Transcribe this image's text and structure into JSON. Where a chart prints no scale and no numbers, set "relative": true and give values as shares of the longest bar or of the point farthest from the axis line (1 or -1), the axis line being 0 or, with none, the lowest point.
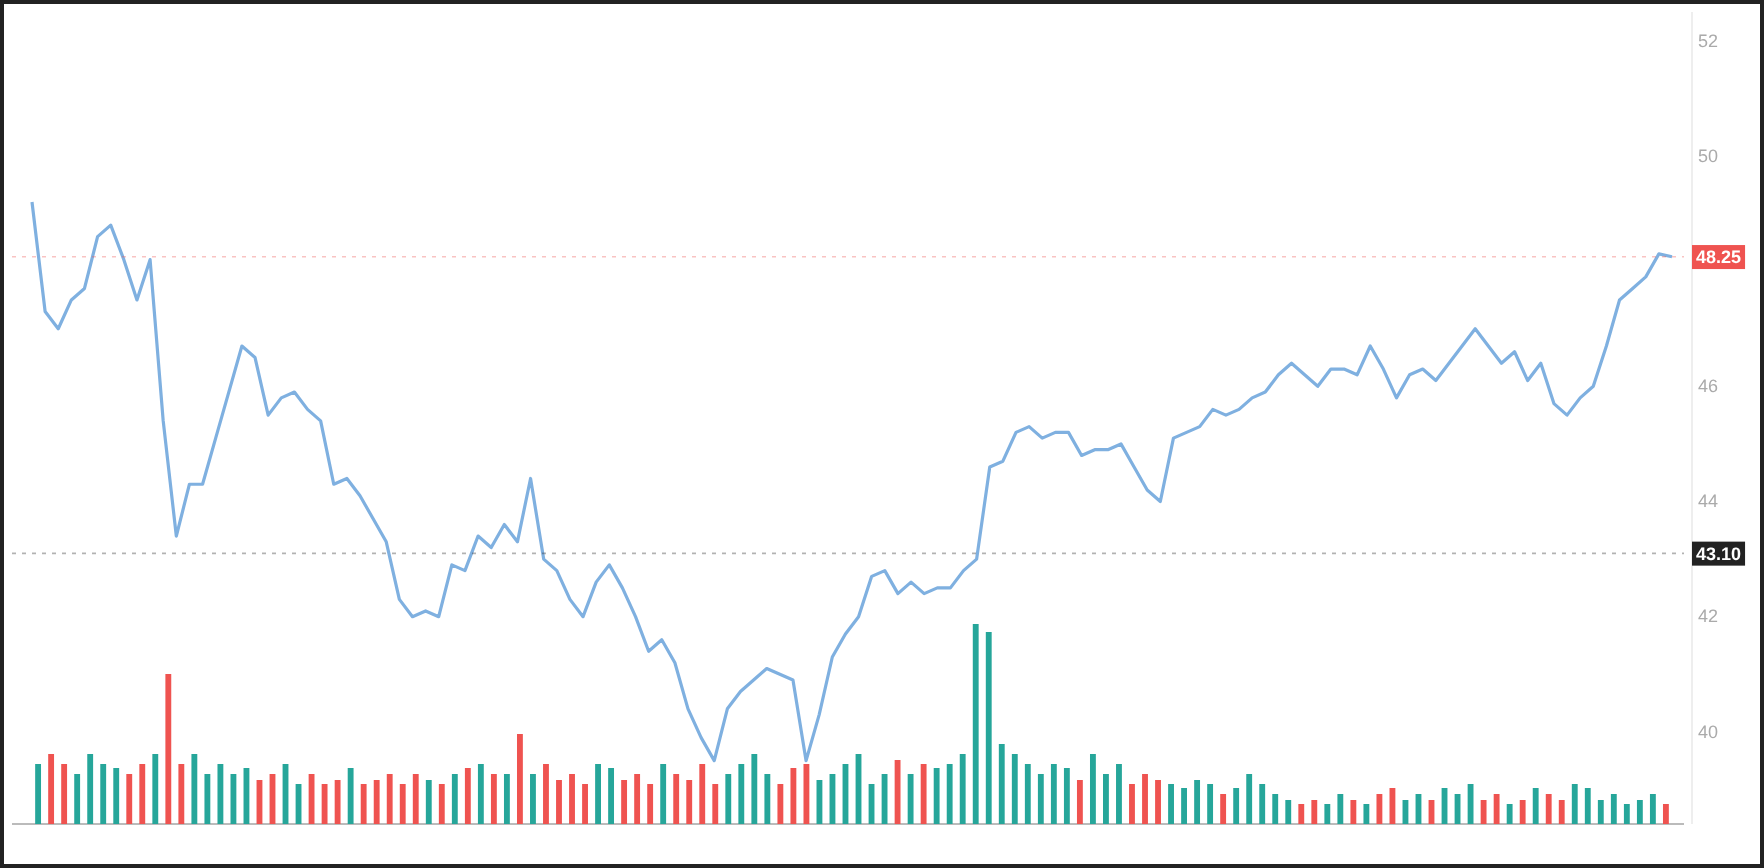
{
  "chart_data": [
    {
      "type": "line",
      "categories": [
        null,
        null,
        null,
        null,
        null,
        null,
        null,
        null,
        null,
        null,
        null,
        null,
        null,
        null,
        null,
        null,
        null,
        null,
        null,
        null,
        null,
        null,
        null,
        null,
        null,
        null,
        null,
        null,
        null,
        null,
        null,
        null,
        null,
        null,
        null,
        null,
        null,
        null,
        null,
        null,
        null,
        null,
        null,
        null,
        null,
        null,
        null,
        null,
        null,
        null,
        null,
        null,
        null,
        null,
        null,
        null,
        null,
        null,
        null,
        null,
        null,
        null,
        null,
        null,
        null,
        null,
        null,
        null,
        null,
        null,
        null,
        null,
        null,
        null,
        null,
        null,
        null,
        null,
        null,
        null,
        null,
        null,
        null,
        null,
        null,
        null,
        null,
        null,
        null,
        null,
        null,
        null,
        null,
        null,
        null,
        null,
        null,
        null,
        null,
        null,
        null,
        null,
        null,
        null,
        null,
        null,
        null,
        null,
        null,
        null,
        null,
        null,
        null,
        null,
        null,
        null,
        null,
        null,
        null,
        null,
        null,
        null,
        null,
        null,
        null,
        null
      ],
      "series": [
        {
          "color": "#7fb0e0",
          "values": [
            49.2,
            47.3,
            47.0,
            47.5,
            47.7,
            48.6,
            48.8,
            48.2,
            47.5,
            48.2,
            45.4,
            43.4,
            44.3,
            44.3,
            45.1,
            45.9,
            46.7,
            46.5,
            45.5,
            45.8,
            45.9,
            45.6,
            45.4,
            44.3,
            44.4,
            44.1,
            43.7,
            43.3,
            42.3,
            42.0,
            42.1,
            42.0,
            42.9,
            42.8,
            43.4,
            43.2,
            43.6,
            43.3,
            44.4,
            43.0,
            42.8,
            42.3,
            42.0,
            42.6,
            42.9,
            42.5,
            42.0,
            41.4,
            41.6,
            41.2,
            40.4,
            39.9,
            39.5,
            40.4,
            40.7,
            40.9,
            41.1,
            41.0,
            40.9,
            39.5,
            40.3,
            41.3,
            41.7,
            42.0,
            42.7,
            42.8,
            42.4,
            42.6,
            42.4,
            42.5,
            42.5,
            42.8,
            43.0,
            44.6,
            44.7,
            45.2,
            45.3,
            45.1,
            45.2,
            45.2,
            44.8,
            44.9,
            44.9,
            45.0,
            44.6,
            44.2,
            44.0,
            45.1,
            45.2,
            45.3,
            45.6,
            45.5,
            45.6,
            45.8,
            45.9,
            46.2,
            46.4,
            46.2,
            46.0,
            46.3,
            46.3,
            46.2,
            46.7,
            46.3,
            45.8,
            46.2,
            46.3,
            46.1,
            46.4,
            46.7,
            47.0,
            46.7,
            46.4,
            46.6,
            46.1,
            46.4,
            45.7,
            45.5,
            45.8,
            46.0,
            46.7,
            47.5,
            47.7,
            47.9,
            48.3,
            48.25
          ]
        }
      ],
      "ylim": [
        38.4,
        52.5
      ],
      "yticks": [
        40,
        42,
        44,
        46,
        50,
        52
      ],
      "tick_labels": "y",
      "marker": "none",
      "line_style": "solid",
      "ref_lines": [
        {
          "axis": "y",
          "value": 48.25,
          "label": "48.25",
          "color": "#ef5350",
          "line_style": "dotted"
        },
        {
          "axis": "y",
          "value": 43.1,
          "label": "43.10",
          "color": "#222222",
          "line_style": "dotted"
        }
      ]
    },
    {
      "type": "bar",
      "relative": true,
      "categories": [
        null,
        null,
        null,
        null,
        null,
        null,
        null,
        null,
        null,
        null,
        null,
        null,
        null,
        null,
        null,
        null,
        null,
        null,
        null,
        null,
        null,
        null,
        null,
        null,
        null,
        null,
        null,
        null,
        null,
        null,
        null,
        null,
        null,
        null,
        null,
        null,
        null,
        null,
        null,
        null,
        null,
        null,
        null,
        null,
        null,
        null,
        null,
        null,
        null,
        null,
        null,
        null,
        null,
        null,
        null,
        null,
        null,
        null,
        null,
        null,
        null,
        null,
        null,
        null,
        null,
        null,
        null,
        null,
        null,
        null,
        null,
        null,
        null,
        null,
        null,
        null,
        null,
        null,
        null,
        null,
        null,
        null,
        null,
        null,
        null,
        null,
        null,
        null,
        null,
        null,
        null,
        null,
        null,
        null,
        null,
        null,
        null,
        null,
        null,
        null,
        null,
        null,
        null,
        null,
        null,
        null,
        null,
        null,
        null,
        null,
        null,
        null,
        null,
        null,
        null,
        null,
        null,
        null,
        null,
        null,
        null,
        null,
        null,
        null,
        null,
        null
      ],
      "values": [
        0.3,
        0.35,
        0.3,
        0.25,
        0.35,
        0.3,
        0.28,
        0.25,
        0.3,
        0.35,
        0.75,
        0.3,
        0.35,
        0.25,
        0.3,
        0.25,
        0.28,
        0.22,
        0.25,
        0.3,
        0.2,
        0.25,
        0.2,
        0.22,
        0.28,
        0.2,
        0.22,
        0.25,
        0.2,
        0.25,
        0.22,
        0.2,
        0.25,
        0.28,
        0.3,
        0.25,
        0.25,
        0.45,
        0.25,
        0.3,
        0.22,
        0.25,
        0.2,
        0.3,
        0.28,
        0.22,
        0.25,
        0.2,
        0.3,
        0.25,
        0.22,
        0.3,
        0.2,
        0.25,
        0.3,
        0.35,
        0.25,
        0.2,
        0.28,
        0.3,
        0.22,
        0.25,
        0.3,
        0.35,
        0.2,
        0.25,
        0.32,
        0.25,
        0.3,
        0.28,
        0.3,
        0.35,
        1.0,
        0.96,
        0.4,
        0.35,
        0.3,
        0.25,
        0.3,
        0.28,
        0.22,
        0.35,
        0.25,
        0.3,
        0.2,
        0.25,
        0.22,
        0.2,
        0.18,
        0.22,
        0.2,
        0.15,
        0.18,
        0.25,
        0.2,
        0.15,
        0.12,
        0.1,
        0.12,
        0.1,
        0.15,
        0.12,
        0.1,
        0.15,
        0.18,
        0.12,
        0.15,
        0.12,
        0.18,
        0.15,
        0.2,
        0.12,
        0.15,
        0.1,
        0.12,
        0.18,
        0.15,
        0.12,
        0.2,
        0.18,
        0.12,
        0.15,
        0.1,
        0.12,
        0.15,
        0.1
      ],
      "colors": [
        "#26a69a",
        "#ef5350",
        "#ef5350",
        "#26a69a",
        "#26a69a",
        "#26a69a",
        "#26a69a",
        "#ef5350",
        "#ef5350",
        "#26a69a",
        "#ef5350",
        "#ef5350",
        "#26a69a",
        "#26a69a",
        "#26a69a",
        "#26a69a",
        "#26a69a",
        "#ef5350",
        "#ef5350",
        "#26a69a",
        "#26a69a",
        "#ef5350",
        "#ef5350",
        "#ef5350",
        "#26a69a",
        "#ef5350",
        "#ef5350",
        "#ef5350",
        "#ef5350",
        "#ef5350",
        "#26a69a",
        "#ef5350",
        "#26a69a",
        "#ef5350",
        "#26a69a",
        "#ef5350",
        "#26a69a",
        "#ef5350",
        "#26a69a",
        "#ef5350",
        "#ef5350",
        "#ef5350",
        "#ef5350",
        "#26a69a",
        "#26a69a",
        "#ef5350",
        "#ef5350",
        "#ef5350",
        "#26a69a",
        "#ef5350",
        "#ef5350",
        "#ef5350",
        "#ef5350",
        "#26a69a",
        "#26a69a",
        "#26a69a",
        "#26a69a",
        "#ef5350",
        "#ef5350",
        "#ef5350",
        "#26a69a",
        "#26a69a",
        "#26a69a",
        "#26a69a",
        "#26a69a",
        "#26a69a",
        "#ef5350",
        "#26a69a",
        "#ef5350",
        "#26a69a",
        "#26a69a",
        "#26a69a",
        "#26a69a",
        "#26a69a",
        "#26a69a",
        "#26a69a",
        "#26a69a",
        "#26a69a",
        "#26a69a",
        "#26a69a",
        "#ef5350",
        "#26a69a",
        "#26a69a",
        "#26a69a",
        "#ef5350",
        "#ef5350",
        "#ef5350",
        "#26a69a",
        "#26a69a",
        "#26a69a",
        "#26a69a",
        "#ef5350",
        "#26a69a",
        "#26a69a",
        "#26a69a",
        "#26a69a",
        "#26a69a",
        "#ef5350",
        "#ef5350",
        "#26a69a",
        "#26a69a",
        "#ef5350",
        "#26a69a",
        "#ef5350",
        "#ef5350",
        "#26a69a",
        "#26a69a",
        "#ef5350",
        "#26a69a",
        "#26a69a",
        "#26a69a",
        "#ef5350",
        "#ef5350",
        "#26a69a",
        "#ef5350",
        "#26a69a",
        "#ef5350",
        "#ef5350",
        "#26a69a",
        "#26a69a",
        "#26a69a",
        "#26a69a",
        "#26a69a",
        "#26a69a",
        "#26a69a",
        "#ef5350"
      ]
    }
  ]
}
